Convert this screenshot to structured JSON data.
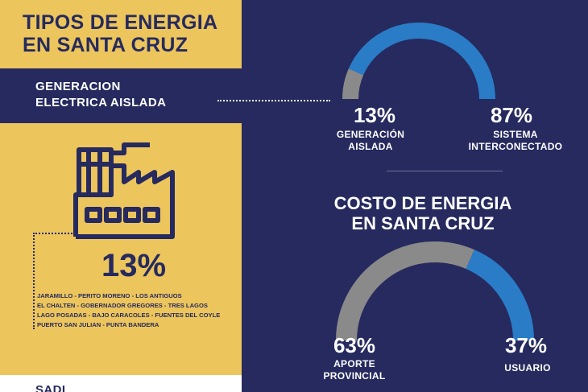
{
  "left_panel": {
    "title_line1": "TIPOS DE ENERGIA",
    "title_line2": "EN SANTA CRUZ",
    "band_label_line1": "GENERACION",
    "band_label_line2": "ELECTRICA AISLADA",
    "big_percent": "13%",
    "towns": [
      "JARAMILLO - PERITO MORENO - LOS ANTIGUOS",
      "EL CHALTEN - GOBERNADOR GREGORES - TRES LAGOS",
      "LAGO POSADAS - BAJO CARACOLES - FUENTES DEL COYLE",
      "PUERTO SAN JULIAN - PUNTA BANDERA"
    ],
    "sadi_label": "SADI",
    "factory_icon": "factory-icon"
  },
  "colors": {
    "navy": "#262a5e",
    "yellow": "#ecc55c",
    "blue": "#2a7cc7",
    "gray": "#8a8a8a"
  },
  "chart_data": [
    {
      "type": "pie",
      "style": "semicircle-gauge",
      "slices": [
        {
          "label": "GENERACIÓN AISLADA",
          "label_line1": "GENERACIÓN",
          "label_line2": "AISLADA",
          "value": 13,
          "value_label": "13%",
          "color": "#8a8a8a"
        },
        {
          "label": "SISTEMA INTERCONECTADO",
          "label_line1": "SISTEMA",
          "label_line2": "INTERCONECTADO",
          "value": 87,
          "value_label": "87%",
          "color": "#2a7cc7"
        }
      ]
    },
    {
      "type": "pie",
      "style": "semicircle-gauge",
      "title_line1": "COSTO DE ENERGIA",
      "title_line2": "EN SANTA CRUZ",
      "slices": [
        {
          "label": "APORTE PROVINCIAL",
          "label_line1": "APORTE",
          "label_line2": "PROVINCIAL",
          "value": 63,
          "value_label": "63%",
          "color": "#8a8a8a"
        },
        {
          "label": "USUARIO",
          "label_line1": "USUARIO",
          "label_line2": "",
          "value": 37,
          "value_label": "37%",
          "color": "#2a7cc7"
        }
      ]
    }
  ]
}
